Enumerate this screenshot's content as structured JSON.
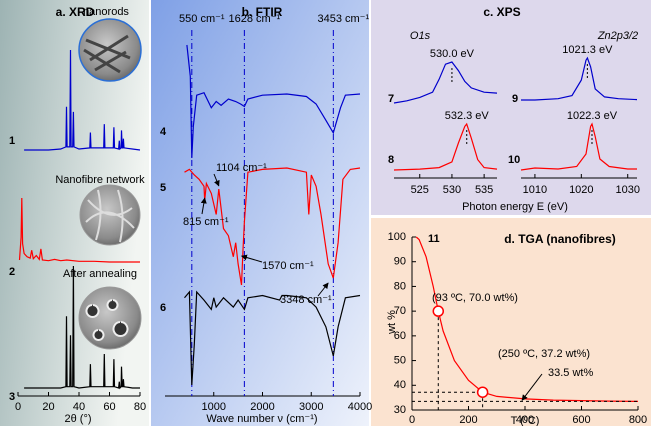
{
  "chart_data": [
    {
      "type": "line",
      "title": "a. XRD",
      "xlabel": "2θ (°)",
      "xlim": [
        0,
        80
      ],
      "xticks": [
        0,
        20,
        40,
        60,
        80
      ],
      "series": [
        {
          "name": "1",
          "label": "nanorods",
          "color": "#0000cc",
          "x": [
            4,
            10,
            20,
            28,
            31.4,
            31.8,
            32.2,
            34,
            34.4,
            34.8,
            35.9,
            36.3,
            36.7,
            40,
            47.1,
            47.5,
            47.9,
            56.2,
            56.6,
            57,
            62.5,
            62.9,
            63.3,
            66,
            66.4,
            66.8,
            67.6,
            67.9,
            68.3,
            68.7,
            69.1,
            69.5,
            75,
            80
          ],
          "values": [
            3,
            3,
            3,
            4,
            6,
            45,
            6,
            6,
            100,
            6,
            6,
            40,
            6,
            4,
            5,
            20,
            5,
            5,
            28,
            5,
            5,
            25,
            5,
            4,
            12,
            4,
            5,
            22,
            5,
            5,
            14,
            5,
            4,
            3
          ]
        },
        {
          "name": "2",
          "label": "Nanofibre network",
          "color": "#ff0000",
          "x": [
            1,
            2,
            2.5,
            3,
            4,
            6,
            8,
            9,
            10,
            12,
            14,
            15,
            16,
            20,
            24,
            28,
            32,
            40,
            50,
            60,
            70,
            80
          ],
          "values": [
            5,
            40,
            100,
            30,
            15,
            10,
            8,
            20,
            7,
            12,
            6,
            22,
            5,
            4,
            6,
            4,
            5,
            3,
            3,
            2,
            2,
            2
          ]
        },
        {
          "name": "3",
          "label": "After annealing",
          "color": "#000000",
          "x": [
            4,
            10,
            20,
            28,
            31.4,
            31.8,
            32.2,
            34,
            34.4,
            34.8,
            35.9,
            36.3,
            36.7,
            40,
            47.1,
            47.5,
            47.9,
            56.2,
            56.6,
            57,
            62.5,
            62.9,
            63.3,
            66,
            66.4,
            66.8,
            67.6,
            67.9,
            68.3,
            68.7,
            69.1,
            69.5,
            75,
            80
          ],
          "values": [
            3,
            3,
            3,
            3,
            4,
            60,
            4,
            4,
            45,
            4,
            4,
            100,
            4,
            3,
            4,
            22,
            4,
            4,
            30,
            4,
            4,
            26,
            4,
            3,
            8,
            3,
            4,
            20,
            4,
            4,
            10,
            4,
            3,
            3
          ]
        }
      ]
    },
    {
      "type": "line",
      "title": "b. FTIR",
      "xlabel": "Wave number ν (cm⁻¹)",
      "xlim": [
        0,
        4000
      ],
      "xticks": [
        1000,
        2000,
        3000,
        4000
      ],
      "reference_lines": [
        {
          "value": 550,
          "label": "550 cm⁻¹"
        },
        {
          "value": 1628,
          "label": "1628 cm⁻¹"
        },
        {
          "value": 3453,
          "label": "3453 cm⁻¹"
        }
      ],
      "annotations": [
        {
          "value": 1104,
          "label": "1104 cm⁻¹"
        },
        {
          "value": 815,
          "label": "815 cm⁻¹"
        },
        {
          "value": 1570,
          "label": "1570 cm⁻¹"
        },
        {
          "value": 3348,
          "label": "3348 cm⁻¹"
        }
      ],
      "series": [
        {
          "name": "4",
          "color": "#0000cc",
          "x": [
            450,
            520,
            550,
            580,
            650,
            800,
            950,
            1050,
            1150,
            1300,
            1450,
            1550,
            1628,
            1700,
            2000,
            2500,
            2900,
            3100,
            3300,
            3453,
            3600,
            3700,
            4000
          ],
          "values": [
            95,
            70,
            5,
            30,
            55,
            57,
            45,
            50,
            47,
            52,
            50,
            48,
            46,
            52,
            55,
            56,
            54,
            48,
            35,
            25,
            45,
            55,
            56
          ]
        },
        {
          "name": "5",
          "color": "#ff0000",
          "x": [
            400,
            500,
            600,
            700,
            800,
            815,
            850,
            950,
            1050,
            1104,
            1200,
            1300,
            1400,
            1450,
            1500,
            1570,
            1600,
            1628,
            1700,
            2000,
            2500,
            2900,
            2950,
            3000,
            3100,
            3200,
            3348,
            3453,
            3550,
            3650,
            3800,
            4000
          ],
          "values": [
            90,
            92,
            88,
            85,
            80,
            70,
            82,
            75,
            60,
            78,
            50,
            45,
            30,
            40,
            25,
            10,
            35,
            55,
            90,
            92,
            93,
            90,
            60,
            88,
            80,
            60,
            25,
            15,
            40,
            85,
            92,
            93
          ]
        },
        {
          "name": "6",
          "color": "#000000",
          "x": [
            400,
            500,
            550,
            600,
            650,
            800,
            950,
            1000,
            1050,
            1200,
            1400,
            1500,
            1628,
            1700,
            2000,
            2350,
            2400,
            2500,
            2900,
            3100,
            3300,
            3453,
            3550,
            3700,
            4000
          ],
          "values": [
            80,
            85,
            5,
            40,
            85,
            78,
            70,
            80,
            72,
            80,
            72,
            78,
            70,
            80,
            82,
            78,
            82,
            82,
            80,
            72,
            55,
            30,
            55,
            80,
            82
          ]
        }
      ]
    },
    {
      "type": "line",
      "title": "c. XPS",
      "subtitle": "O1s",
      "xlabel": "Photon energy E (eV)",
      "xlim": [
        521,
        537
      ],
      "xticks": [
        525,
        530,
        535
      ],
      "series": [
        {
          "name": "7",
          "color": "#0000cc",
          "peak": 530.0,
          "peak_label": "530.0 eV",
          "x": [
            521,
            523,
            525,
            527,
            528,
            529,
            530,
            531,
            532,
            533,
            535,
            537
          ],
          "values": [
            5,
            10,
            18,
            30,
            60,
            95,
            100,
            80,
            55,
            40,
            30,
            28
          ]
        },
        {
          "name": "8",
          "color": "#ff0000",
          "peak": 532.3,
          "peak_label": "532.3 eV",
          "x": [
            521,
            525,
            528,
            530,
            531,
            532,
            532.3,
            533,
            534,
            535,
            537
          ],
          "values": [
            3,
            5,
            8,
            20,
            60,
            95,
            100,
            70,
            25,
            8,
            5
          ]
        }
      ]
    },
    {
      "type": "line",
      "subtitle": "Zn2p3/2",
      "xlim": [
        1007,
        1032
      ],
      "xticks": [
        1010,
        1020,
        1030
      ],
      "series": [
        {
          "name": "9",
          "color": "#0000cc",
          "peak": 1021.3,
          "peak_label": "1021.3 eV",
          "x": [
            1007,
            1010,
            1015,
            1018,
            1020,
            1021,
            1021.3,
            1022,
            1023,
            1025,
            1028,
            1032
          ],
          "values": [
            5,
            5,
            8,
            15,
            50,
            95,
            100,
            80,
            30,
            12,
            8,
            6
          ]
        },
        {
          "name": "10",
          "color": "#ff0000",
          "peak": 1022.3,
          "peak_label": "1022.3 eV",
          "x": [
            1007,
            1010,
            1015,
            1019,
            1021,
            1022,
            1022.3,
            1023,
            1024,
            1026,
            1030,
            1032
          ],
          "values": [
            8,
            12,
            10,
            15,
            40,
            95,
            100,
            75,
            30,
            15,
            10,
            10
          ]
        }
      ]
    },
    {
      "type": "line",
      "title": "d. TGA (nanofibres)",
      "xlabel": "T (ºC)",
      "ylabel": "wt %",
      "xlim": [
        0,
        800
      ],
      "ylim": [
        30,
        100
      ],
      "xticks": [
        0,
        200,
        400,
        600,
        800
      ],
      "yticks": [
        30,
        40,
        50,
        60,
        70,
        80,
        90,
        100
      ],
      "series": [
        {
          "name": "11",
          "color": "#ff0000",
          "x": [
            15,
            25,
            50,
            75,
            93,
            110,
            150,
            200,
            250,
            300,
            400,
            500,
            600,
            700,
            800
          ],
          "values": [
            100,
            99,
            92,
            80,
            70,
            62,
            50,
            42,
            37.2,
            35.5,
            34.5,
            34,
            33.8,
            33.6,
            33.5
          ]
        }
      ],
      "markers": [
        {
          "x": 93,
          "y": 70.0,
          "label": "(93 ºC, 70.0 wt%)"
        },
        {
          "x": 250,
          "y": 37.2,
          "label": "(250 ºC, 37.2 wt%)"
        }
      ],
      "plateau": {
        "value": 33.5,
        "label": "33.5 wt%"
      }
    }
  ]
}
